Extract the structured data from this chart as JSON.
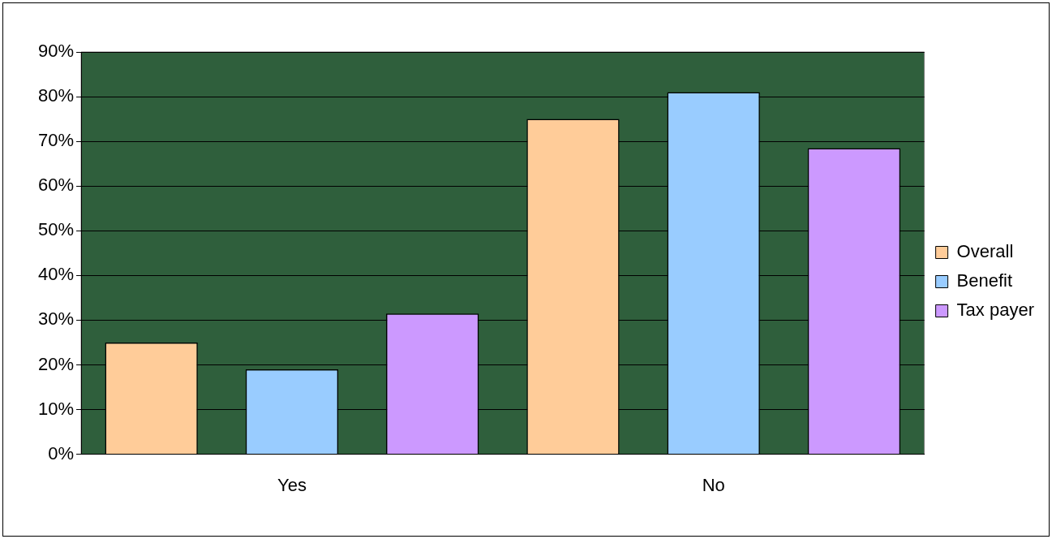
{
  "chart_data": {
    "type": "bar",
    "categories": [
      "Yes",
      "No"
    ],
    "series": [
      {
        "name": "Overall",
        "color": "#ffcc99",
        "values": [
          25,
          75
        ]
      },
      {
        "name": "Benefit",
        "color": "#99ccff",
        "values": [
          19,
          81
        ]
      },
      {
        "name": "Tax payer",
        "color": "#cc99ff",
        "values": [
          31.5,
          68.5
        ]
      }
    ],
    "ylim": [
      0,
      90
    ],
    "yticks": [
      {
        "value": 0,
        "label": "0%"
      },
      {
        "value": 10,
        "label": "10%"
      },
      {
        "value": 20,
        "label": "20%"
      },
      {
        "value": 30,
        "label": "30%"
      },
      {
        "value": 40,
        "label": "40%"
      },
      {
        "value": 50,
        "label": "50%"
      },
      {
        "value": 60,
        "label": "60%"
      },
      {
        "value": 70,
        "label": "70%"
      },
      {
        "value": 80,
        "label": "80%"
      },
      {
        "value": 90,
        "label": "90%"
      }
    ],
    "grid": "y",
    "legend": "right"
  }
}
